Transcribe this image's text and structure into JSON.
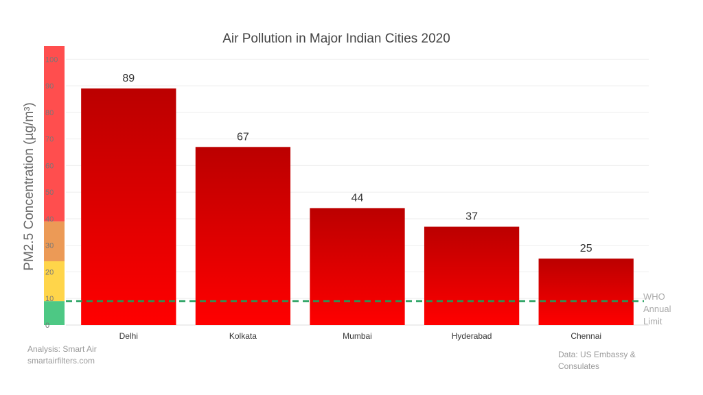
{
  "chart_data": {
    "type": "bar",
    "title": "Air Pollution in Major Indian Cities 2020",
    "ylabel": "PM2.5 Concentration (µg/m³)",
    "xlabel": "",
    "categories": [
      "Delhi",
      "Kolkata",
      "Mumbai",
      "Hyderabad",
      "Chennai"
    ],
    "values": [
      89,
      67,
      44,
      37,
      25
    ],
    "ylim": [
      0,
      105
    ],
    "yticks": [
      0,
      10,
      20,
      30,
      40,
      50,
      60,
      70,
      80,
      90,
      100
    ],
    "grid": true,
    "bar_gradient": [
      "#bb0000",
      "#ff0000"
    ],
    "reference_line": {
      "value": 9,
      "label_lines": [
        "WHO",
        "Annual",
        "Limit"
      ],
      "color": "#1e9e5a"
    },
    "aqi_bands": [
      {
        "from": 0,
        "to": 9,
        "color": "#4dc884"
      },
      {
        "from": 9,
        "to": 24,
        "color": "#ffd54a"
      },
      {
        "from": 24,
        "to": 39,
        "color": "#ec9a56"
      },
      {
        "from": 39,
        "to": 105,
        "color": "#ff4e4e"
      }
    ]
  },
  "footnotes": {
    "analysis_line1": "Analysis: Smart Air",
    "analysis_line2": "smartairfilters.com",
    "source_line1": "Data: US Embassy &",
    "source_line2": "Consulates"
  }
}
